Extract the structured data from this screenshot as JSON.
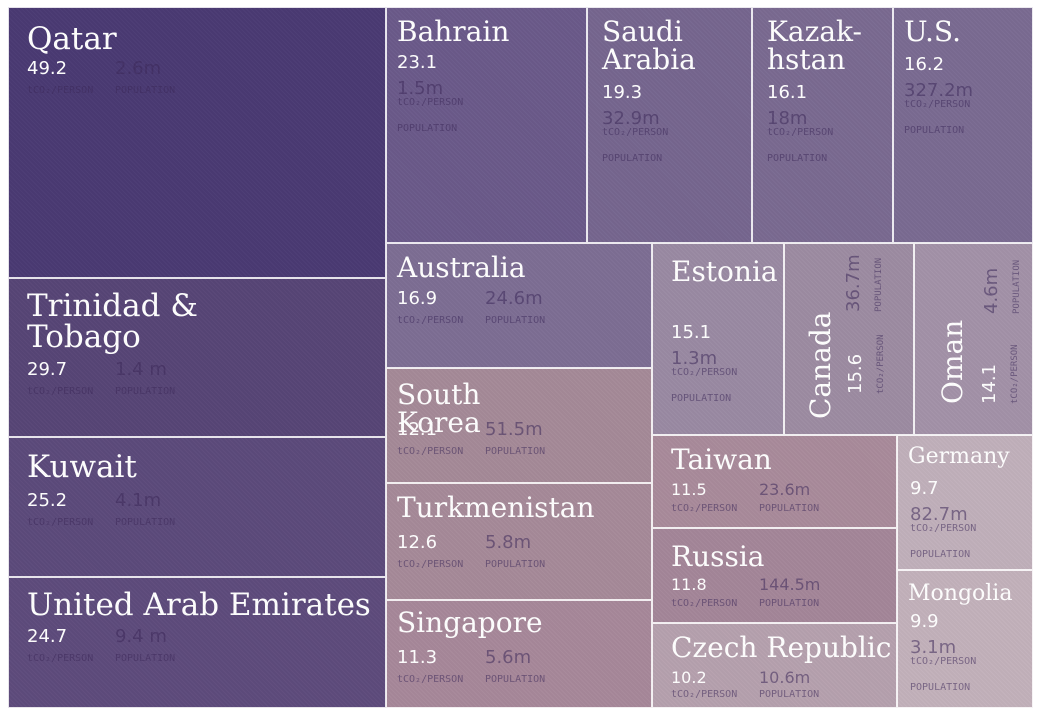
{
  "chart_data": {
    "type": "treemap",
    "value_unit": "tCO₂/PERSON",
    "population_unit": "POPULATION",
    "items": [
      {
        "name": "Qatar",
        "value": "49.2",
        "population": "2.6m",
        "color": "#4a3a73"
      },
      {
        "name": "Trinidad &\nTobago",
        "value": "29.7",
        "population": "1.4 m",
        "color": "#574576"
      },
      {
        "name": "Kuwait",
        "value": "25.2",
        "population": "4.1m",
        "color": "#5c4a7b"
      },
      {
        "name": "United Arab Emirates",
        "value": "24.7",
        "population": "9.4 m",
        "color": "#5e4b7c"
      },
      {
        "name": "Bahrain",
        "value": "23.1",
        "population": "1.5m",
        "color": "#6b5a8a"
      },
      {
        "name": "Saudi\nArabia",
        "value": "19.3",
        "population": "32.9m",
        "color": "#76668f"
      },
      {
        "name": "Kazak-\nhstan",
        "value": "16.1",
        "population": "18m",
        "color": "#7a6a91"
      },
      {
        "name": "U.S.",
        "value": "16.2",
        "population": "327.2m",
        "color": "#7a6b92"
      },
      {
        "name": "Australia",
        "value": "16.9",
        "population": "24.6m",
        "color": "#7d6e94"
      },
      {
        "name": "Estonia",
        "value": "15.1",
        "population": "1.3m",
        "color": "#9a8aa3"
      },
      {
        "name": "Canada",
        "value": "15.6",
        "population": "36.7m",
        "color": "#9d8ca2"
      },
      {
        "name": "Oman",
        "value": "14.1",
        "population": "4.6m",
        "color": "#a392a8"
      },
      {
        "name": "South\nKorea",
        "value": "12.1",
        "population": "51.5m",
        "color": "#a58a98"
      },
      {
        "name": "Turkmenistan",
        "value": "12.6",
        "population": "5.8m",
        "color": "#a68a99"
      },
      {
        "name": "Singapore",
        "value": "11.3",
        "population": "5.6m",
        "color": "#a7889a"
      },
      {
        "name": "Taiwan",
        "value": "11.5",
        "population": "23.6m",
        "color": "#a98b9b"
      },
      {
        "name": "Russia",
        "value": "11.8",
        "population": "144.5m",
        "color": "#a48699"
      },
      {
        "name": "Czech Republic",
        "value": "10.2",
        "population": "10.6m",
        "color": "#b6a1ae"
      },
      {
        "name": "Germany",
        "value": "9.7",
        "population": "82.7m",
        "color": "#c1b0bb"
      },
      {
        "name": "Mongolia",
        "value": "9.9",
        "population": "3.1m",
        "color": "#c3b1bb"
      }
    ]
  }
}
